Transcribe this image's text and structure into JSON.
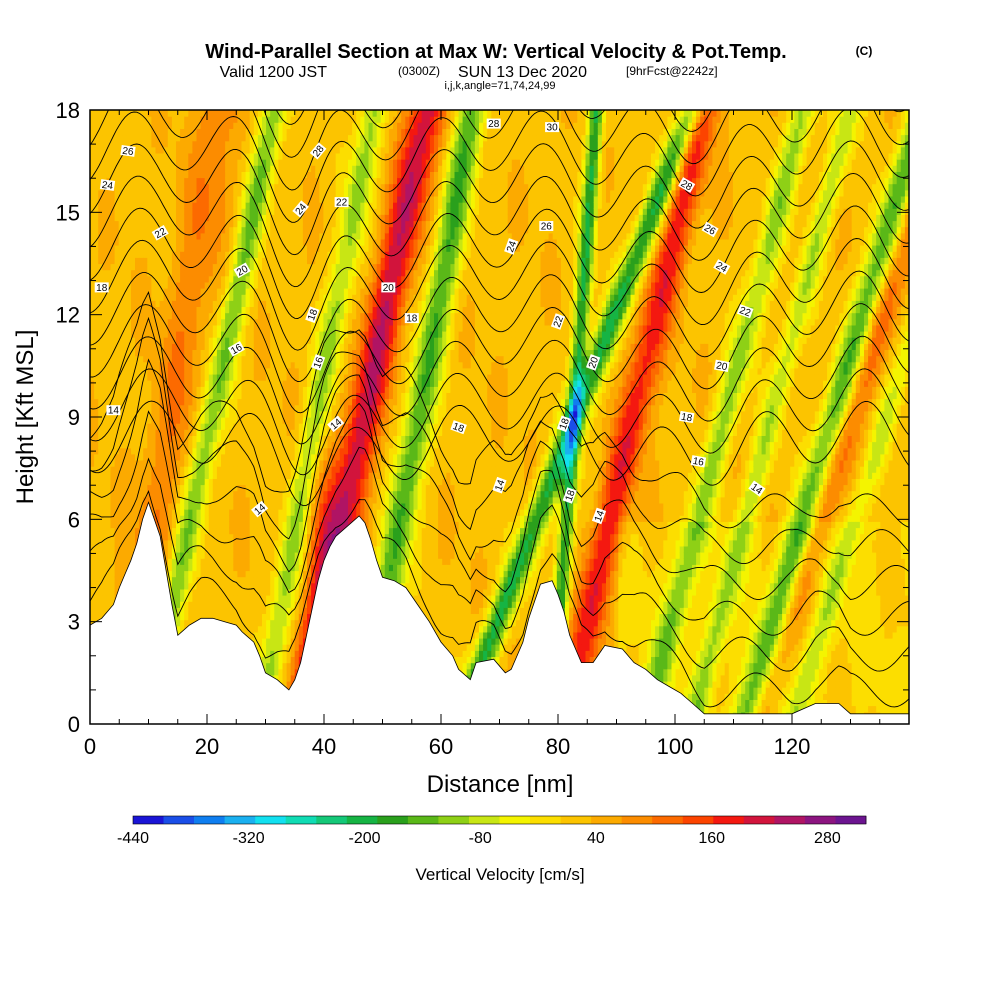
{
  "header": {
    "title": "Wind-Parallel Section at Max W: Vertical Velocity & Pot.Temp.",
    "copyright": "(C)",
    "valid_prefix": "Valid 1200 JST",
    "valid_utc": "(0300Z)",
    "valid_date": "SUN 13 Dec 2020",
    "forecast": "[9hrFcst@2242z]",
    "ijk": "i,j,k,angle=71,74,24,99"
  },
  "chart_data": {
    "type": "heatmap",
    "xlabel": "Distance [nm]",
    "ylabel": "Height [Kft MSL]",
    "xlim": [
      0,
      140
    ],
    "ylim": [
      0,
      18
    ],
    "x_ticks": [
      0,
      20,
      40,
      60,
      80,
      100,
      120
    ],
    "y_ticks": [
      0,
      3,
      6,
      9,
      12,
      15,
      18
    ],
    "colorbar": {
      "label": "Vertical Velocity [cm/s]",
      "range": [
        -440,
        320
      ],
      "tick_values": [
        -440,
        -320,
        -200,
        -80,
        40,
        160,
        280
      ],
      "tick_labels": [
        "-440",
        "-320",
        "-200",
        "-80",
        "40",
        "160",
        "280"
      ],
      "colors": [
        "#1a14d6",
        "#1a4ee8",
        "#0f7ef0",
        "#1ab0f0",
        "#12e0f0",
        "#10dcb4",
        "#14c878",
        "#16b444",
        "#2aa01c",
        "#5ab818",
        "#8ed016",
        "#c8e614",
        "#f4f400",
        "#fcde00",
        "#fcc400",
        "#fcaa00",
        "#fc8c00",
        "#fc6a00",
        "#fc4400",
        "#f41810",
        "#d2143c",
        "#b01464",
        "#8c1480",
        "#6c1490"
      ]
    },
    "terrain": [
      [
        0,
        2.9
      ],
      [
        2,
        3.1
      ],
      [
        4,
        3.5
      ],
      [
        5,
        4.0
      ],
      [
        6,
        4.4
      ],
      [
        7,
        4.8
      ],
      [
        8,
        5.3
      ],
      [
        9,
        6.0
      ],
      [
        10,
        6.5
      ],
      [
        12,
        5.5
      ],
      [
        13,
        4.5
      ],
      [
        14,
        3.5
      ],
      [
        15,
        2.6
      ],
      [
        17,
        2.9
      ],
      [
        19,
        3.1
      ],
      [
        21,
        3.1
      ],
      [
        23,
        3.0
      ],
      [
        25,
        2.9
      ],
      [
        26,
        2.7
      ],
      [
        28,
        2.4
      ],
      [
        29,
        2.0
      ],
      [
        30,
        1.5
      ],
      [
        32,
        1.3
      ],
      [
        34,
        1.0
      ],
      [
        35,
        1.3
      ],
      [
        36,
        1.8
      ],
      [
        37,
        2.6
      ],
      [
        38,
        3.4
      ],
      [
        39,
        4.2
      ],
      [
        40,
        4.8
      ],
      [
        41,
        5.2
      ],
      [
        42,
        5.5
      ],
      [
        44,
        5.8
      ],
      [
        46,
        6.1
      ],
      [
        47,
        5.9
      ],
      [
        48,
        5.4
      ],
      [
        49,
        4.8
      ],
      [
        50,
        4.3
      ],
      [
        52,
        4.2
      ],
      [
        54,
        4.0
      ],
      [
        56,
        3.5
      ],
      [
        58,
        3.0
      ],
      [
        60,
        2.4
      ],
      [
        62,
        2.0
      ],
      [
        63,
        1.6
      ],
      [
        65,
        1.3
      ],
      [
        66,
        1.8
      ],
      [
        69,
        1.9
      ],
      [
        71,
        1.5
      ],
      [
        72,
        1.6
      ],
      [
        74,
        2.4
      ],
      [
        75,
        3.1
      ],
      [
        76,
        3.6
      ],
      [
        77,
        4.1
      ],
      [
        79,
        4.2
      ],
      [
        80,
        3.8
      ],
      [
        81,
        3.3
      ],
      [
        82,
        2.6
      ],
      [
        84,
        1.8
      ],
      [
        86,
        1.8
      ],
      [
        88,
        2.3
      ],
      [
        91,
        2.2
      ],
      [
        93,
        1.8
      ],
      [
        95,
        1.6
      ],
      [
        97,
        1.3
      ],
      [
        99,
        1.1
      ],
      [
        101,
        0.9
      ],
      [
        103,
        0.6
      ],
      [
        105,
        0.3
      ],
      [
        107,
        0.3
      ],
      [
        110,
        0.3
      ],
      [
        115,
        0.3
      ],
      [
        120,
        0.3
      ],
      [
        124,
        0.6
      ],
      [
        128,
        0.6
      ],
      [
        130,
        0.3
      ],
      [
        136,
        0.3
      ],
      [
        140,
        0.3
      ]
    ],
    "updraft_bands": [
      {
        "x0": 36,
        "slope": 0.2,
        "width": 3.2,
        "value": 200
      },
      {
        "x0": 81,
        "slope": 0.22,
        "width": 2.8,
        "value": 160
      },
      {
        "x0": 114,
        "slope": 0.3,
        "width": 2.5,
        "value": 100
      },
      {
        "x0": 6,
        "slope": 0.15,
        "width": 4,
        "value": 70
      }
    ],
    "downdraft_bands": [
      {
        "x0": 10,
        "slope": 0.2,
        "width": 2.3,
        "value": -150
      },
      {
        "x0": 29,
        "slope": 0.18,
        "width": 2.3,
        "value": -130
      },
      {
        "x0": 47,
        "slope": 0.17,
        "width": 2.6,
        "value": -180
      },
      {
        "x0": 63,
        "slope": 0.37,
        "width": 2.2,
        "value": -220
      },
      {
        "x0": 79,
        "slope": 0.07,
        "width": 1.3,
        "value": -220
      },
      {
        "x0": 95,
        "slope": 0.25,
        "width": 2.3,
        "value": -130
      },
      {
        "x0": 103,
        "slope": 0.25,
        "width": 2.0,
        "value": -110
      },
      {
        "x0": 112,
        "slope": 0.28,
        "width": 2.5,
        "value": -180
      },
      {
        "x0": 120,
        "slope": 0.3,
        "width": 2,
        "value": -90
      }
    ],
    "theta_contours": {
      "levels": [
        12,
        13,
        14,
        15,
        16,
        17,
        18,
        19,
        20,
        21,
        22,
        23,
        24,
        25,
        26,
        27,
        28,
        29,
        30
      ],
      "labels": [
        {
          "text": "26",
          "x": 6.5,
          "y": 16.8,
          "angle": -8
        },
        {
          "text": "24",
          "x": 3,
          "y": 15.8,
          "angle": -8
        },
        {
          "text": "22",
          "x": 12,
          "y": 14.4,
          "angle": 30
        },
        {
          "text": "20",
          "x": 26,
          "y": 13.3,
          "angle": 30
        },
        {
          "text": "18",
          "x": 2,
          "y": 12.8,
          "angle": 0
        },
        {
          "text": "16",
          "x": 25,
          "y": 11.0,
          "angle": 30
        },
        {
          "text": "14",
          "x": 4,
          "y": 9.2,
          "angle": 0
        },
        {
          "text": "14",
          "x": 29,
          "y": 6.3,
          "angle": 40
        },
        {
          "text": "28",
          "x": 39,
          "y": 16.8,
          "angle": 50
        },
        {
          "text": "24",
          "x": 36,
          "y": 15.1,
          "angle": 50
        },
        {
          "text": "22",
          "x": 43,
          "y": 15.3,
          "angle": 0
        },
        {
          "text": "18",
          "x": 38,
          "y": 12.0,
          "angle": 70
        },
        {
          "text": "16",
          "x": 39,
          "y": 10.6,
          "angle": 70
        },
        {
          "text": "14",
          "x": 42,
          "y": 8.8,
          "angle": 40
        },
        {
          "text": "20",
          "x": 51,
          "y": 12.8,
          "angle": 0
        },
        {
          "text": "18",
          "x": 55,
          "y": 11.9,
          "angle": 0
        },
        {
          "text": "18",
          "x": 63,
          "y": 8.7,
          "angle": -20
        },
        {
          "text": "14",
          "x": 70,
          "y": 7.0,
          "angle": 70
        },
        {
          "text": "28",
          "x": 69,
          "y": 17.6,
          "angle": 0
        },
        {
          "text": "30",
          "x": 79,
          "y": 17.5,
          "angle": 0
        },
        {
          "text": "26",
          "x": 78,
          "y": 14.6,
          "angle": 0
        },
        {
          "text": "24",
          "x": 72,
          "y": 14.0,
          "angle": 70
        },
        {
          "text": "22",
          "x": 80,
          "y": 11.8,
          "angle": 70
        },
        {
          "text": "20",
          "x": 86,
          "y": 10.6,
          "angle": 70
        },
        {
          "text": "18",
          "x": 81,
          "y": 8.8,
          "angle": 70
        },
        {
          "text": "18",
          "x": 82,
          "y": 6.7,
          "angle": 70
        },
        {
          "text": "14",
          "x": 87,
          "y": 6.1,
          "angle": 70
        },
        {
          "text": "28",
          "x": 102,
          "y": 15.8,
          "angle": -30
        },
        {
          "text": "26",
          "x": 106,
          "y": 14.5,
          "angle": -30
        },
        {
          "text": "24",
          "x": 108,
          "y": 13.4,
          "angle": -30
        },
        {
          "text": "22",
          "x": 112,
          "y": 12.1,
          "angle": -20
        },
        {
          "text": "20",
          "x": 108,
          "y": 10.5,
          "angle": -10
        },
        {
          "text": "18",
          "x": 102,
          "y": 9.0,
          "angle": -10
        },
        {
          "text": "16",
          "x": 104,
          "y": 7.7,
          "angle": -10
        },
        {
          "text": "14",
          "x": 114,
          "y": 6.9,
          "angle": -35
        }
      ]
    }
  }
}
